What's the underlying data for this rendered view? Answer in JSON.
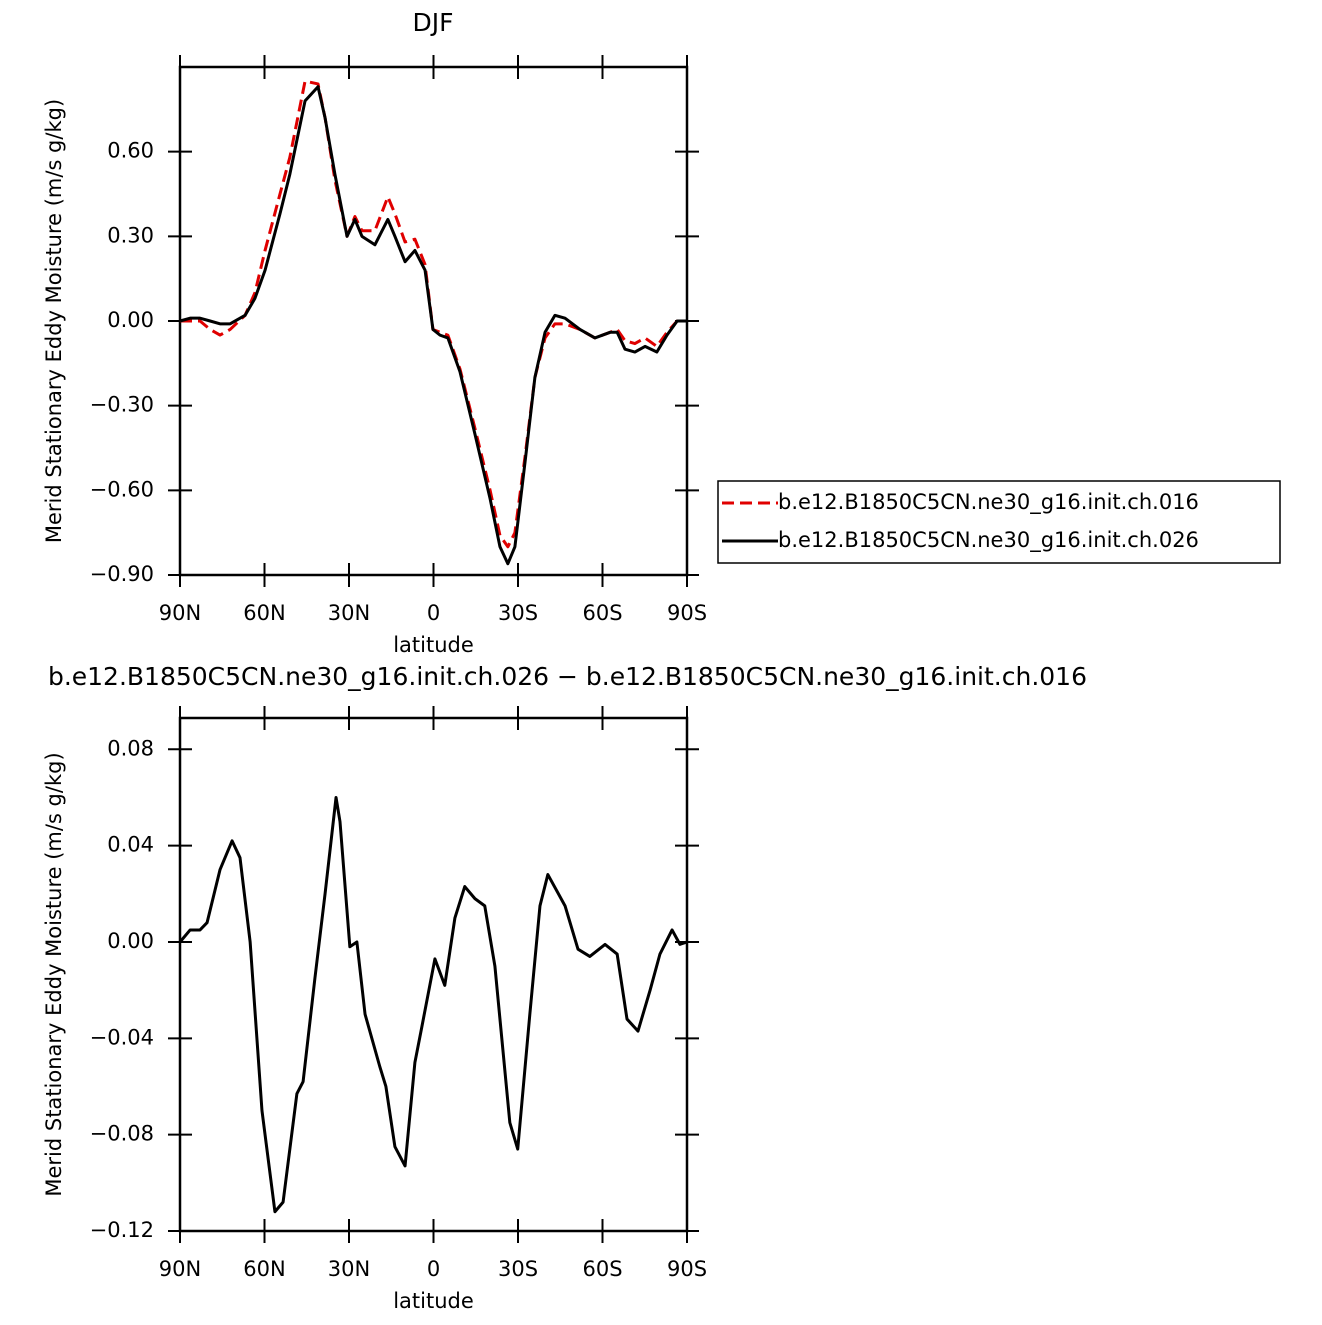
{
  "chart_data": [
    {
      "type": "line",
      "title": "DJF",
      "xlabel": "latitude",
      "ylabel": "Merid Stationary Eddy Moisture (m/s g/kg)",
      "x": [
        90,
        86.4,
        82.9,
        79.3,
        75.8,
        72.2,
        66.9,
        63.4,
        59.8,
        54.5,
        51,
        45.6,
        41,
        38.5,
        35,
        30.7,
        27.9,
        25.4,
        20.8,
        16.2,
        13.7,
        10.1,
        6.6,
        3.0,
        0.2,
        -2.3,
        -5.1,
        -9.4,
        -14.7,
        -20.1,
        -23.6,
        -26.4,
        -28.9,
        -32.5,
        -36.0,
        -39.6,
        -43.1,
        -46.7,
        -52.0,
        -57.3,
        -62.7,
        -65.2,
        -68,
        -71.5,
        -75.1,
        -79.3,
        -82.9,
        -86.5,
        -90
      ],
      "series": [
        {
          "name": "b.e12.B1850C5CN.ne30_g16.init.ch.016",
          "color": "#e00000",
          "linestyle": "dashed",
          "values": [
            0.0,
            0.0,
            0.0,
            -0.03,
            -0.05,
            -0.03,
            0.02,
            0.1,
            0.25,
            0.45,
            0.58,
            0.85,
            0.84,
            0.72,
            0.5,
            0.3,
            0.37,
            0.32,
            0.32,
            0.44,
            0.38,
            0.28,
            0.29,
            0.2,
            -0.03,
            -0.04,
            -0.05,
            -0.17,
            -0.38,
            -0.6,
            -0.76,
            -0.8,
            -0.75,
            -0.48,
            -0.2,
            -0.06,
            -0.01,
            -0.01,
            -0.03,
            -0.06,
            -0.04,
            -0.03,
            -0.07,
            -0.08,
            -0.06,
            -0.09,
            -0.04,
            0.0,
            0.0
          ]
        },
        {
          "name": "b.e12.B1850C5CN.ne30_g16.init.ch.026",
          "color": "#000000",
          "linestyle": "solid",
          "values": [
            0.0,
            0.01,
            0.01,
            0.0,
            -0.01,
            -0.01,
            0.02,
            0.08,
            0.18,
            0.38,
            0.52,
            0.78,
            0.83,
            0.72,
            0.52,
            0.3,
            0.36,
            0.3,
            0.27,
            0.36,
            0.3,
            0.21,
            0.25,
            0.18,
            -0.03,
            -0.05,
            -0.06,
            -0.18,
            -0.4,
            -0.63,
            -0.8,
            -0.86,
            -0.8,
            -0.5,
            -0.2,
            -0.04,
            0.02,
            0.01,
            -0.03,
            -0.06,
            -0.04,
            -0.04,
            -0.1,
            -0.11,
            -0.09,
            -0.11,
            -0.05,
            0.0,
            0.0
          ]
        }
      ],
      "xlim": [
        90,
        -90
      ],
      "xticks": [
        {
          "value": 90,
          "label": "90N"
        },
        {
          "value": 60,
          "label": "60N"
        },
        {
          "value": 30,
          "label": "30N"
        },
        0,
        {
          "value": -30,
          "label": "30S"
        },
        {
          "value": -60,
          "label": "60S"
        },
        {
          "value": -90,
          "label": "90S"
        }
      ],
      "ylim": [
        -0.9,
        0.9
      ],
      "yticks": [
        {
          "value": -0.9,
          "label": "−0.90"
        },
        {
          "value": -0.6,
          "label": "−0.60"
        },
        {
          "value": -0.3,
          "label": "−0.30"
        },
        {
          "value": 0,
          "label": "0.00"
        },
        {
          "value": 0.3,
          "label": "0.30"
        },
        {
          "value": 0.6,
          "label": "0.60"
        }
      ],
      "legend": "right"
    },
    {
      "type": "line",
      "title": "b.e12.B1850C5CN.ne30_g16.init.ch.026 − b.e12.B1850C5CN.ne30_g16.init.ch.016",
      "xlabel": "latitude",
      "ylabel": "Merid Stationary Eddy Moisture (m/s g/kg)",
      "x": [
        90,
        86.4,
        82.9,
        80.4,
        75.8,
        71.5,
        68.7,
        65.1,
        60.9,
        56.3,
        53.4,
        48.5,
        46.3,
        42.1,
        38.5,
        34.6,
        33.2,
        29.7,
        27.2,
        24.3,
        19,
        16.9,
        13.7,
        10.1,
        6.6,
        4.1,
        -0.5,
        -4.0,
        -7.6,
        -11.1,
        -14.7,
        -18.2,
        -21.8,
        -27.1,
        -29.9,
        -34.2,
        -37.8,
        -40.6,
        -46.7,
        -51.3,
        -55.5,
        -60.9,
        -65.2,
        -68.7,
        -72.6,
        -76.9,
        -80.4,
        -84.7,
        -87.5,
        -90
      ],
      "series": [
        {
          "name": "difference",
          "color": "#000000",
          "linestyle": "solid",
          "values": [
            0.0,
            0.005,
            0.005,
            0.008,
            0.03,
            0.042,
            0.035,
            0.0,
            -0.07,
            -0.112,
            -0.108,
            -0.063,
            -0.058,
            -0.015,
            0.02,
            0.06,
            0.05,
            -0.002,
            0.0,
            -0.03,
            -0.052,
            -0.06,
            -0.085,
            -0.093,
            -0.05,
            -0.035,
            -0.007,
            -0.018,
            0.01,
            0.023,
            0.018,
            0.015,
            -0.01,
            -0.075,
            -0.086,
            -0.03,
            0.015,
            0.028,
            0.015,
            -0.003,
            -0.006,
            -0.001,
            -0.005,
            -0.032,
            -0.037,
            -0.02,
            -0.005,
            0.005,
            -0.001,
            0.0
          ]
        }
      ],
      "xlim": [
        90,
        -90
      ],
      "xticks": [
        {
          "value": 90,
          "label": "90N"
        },
        {
          "value": 60,
          "label": "60N"
        },
        {
          "value": 30,
          "label": "30N"
        },
        0,
        {
          "value": -30,
          "label": "30S"
        },
        {
          "value": -60,
          "label": "60S"
        },
        {
          "value": -90,
          "label": "90S"
        }
      ],
      "ylim": [
        -0.12,
        0.093
      ],
      "yticks": [
        {
          "value": -0.12,
          "label": "−0.12"
        },
        {
          "value": -0.08,
          "label": "−0.08"
        },
        {
          "value": -0.04,
          "label": "−0.04"
        },
        {
          "value": 0,
          "label": "0.00"
        },
        {
          "value": 0.04,
          "label": "0.04"
        },
        {
          "value": 0.08,
          "label": "0.08"
        }
      ]
    }
  ]
}
